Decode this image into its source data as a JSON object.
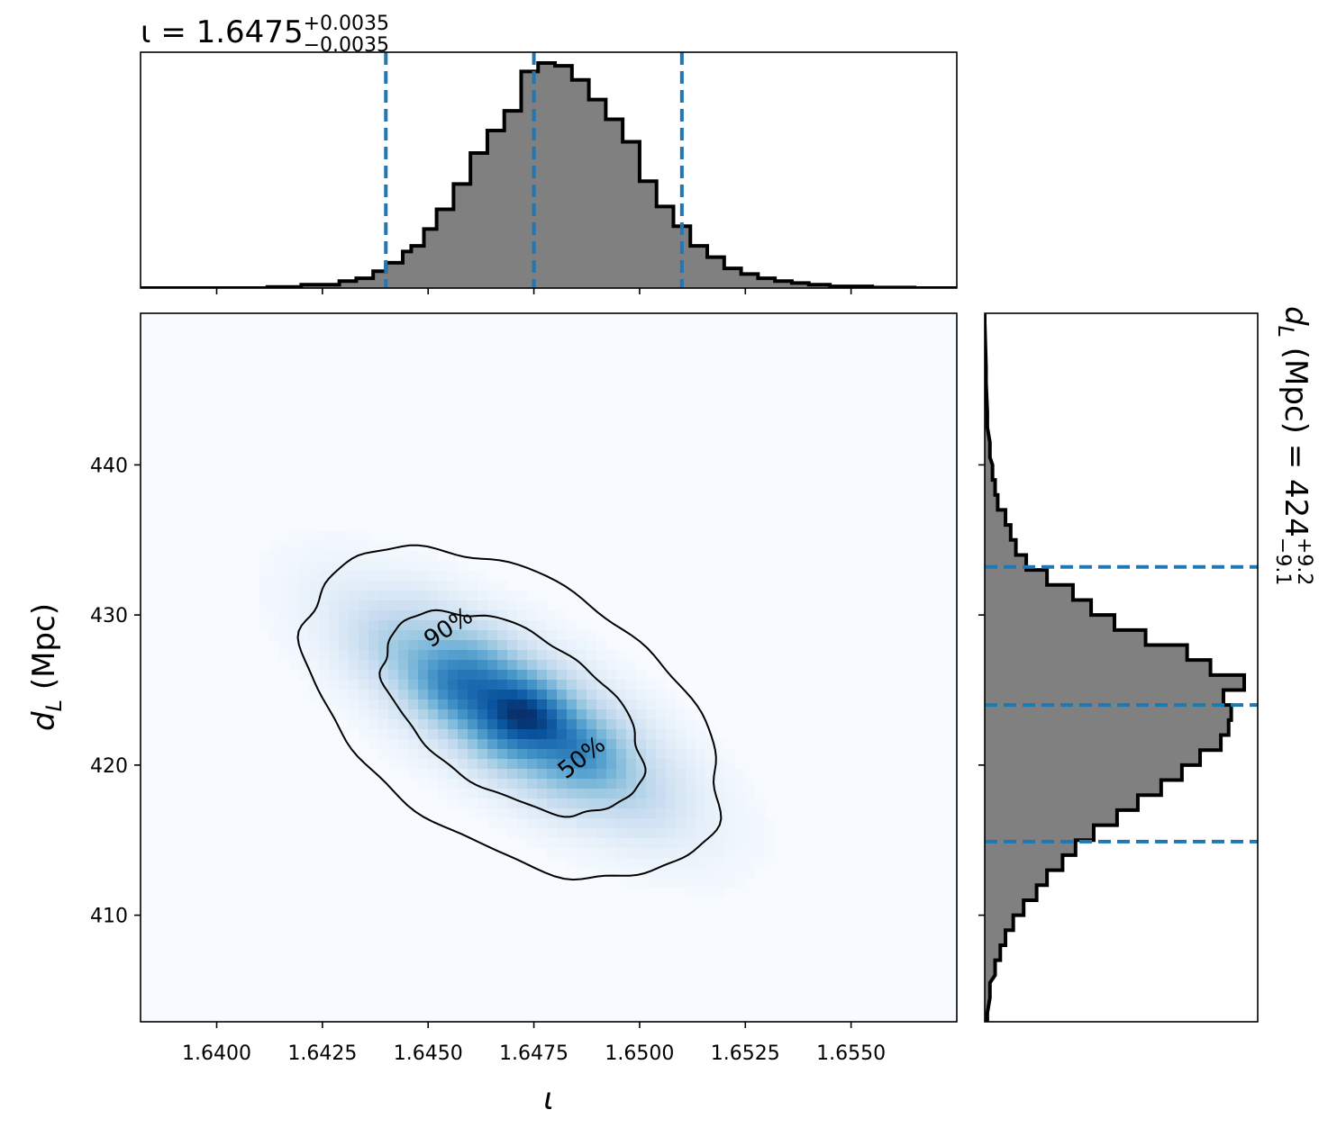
{
  "chart_data": [
    {
      "panel": "top-marginal",
      "type": "histogram",
      "variable": "ι",
      "title": {
        "prefix": "ι = 1.6475",
        "sup": "+0.0035",
        "sub": "−0.0035"
      },
      "xlim": [
        1.6382,
        1.6575
      ],
      "bins_x": [
        1.6382,
        1.64207,
        1.6438,
        1.64415,
        1.64455,
        1.645,
        1.647,
        1.6478,
        1.6485,
        1.6495,
        1.65,
        1.651,
        1.652,
        1.653,
        1.654,
        1.655
      ],
      "hist_profile": [
        {
          "x": 1.6382,
          "y": 0.0
        },
        {
          "x": 1.64,
          "y": 0.0
        },
        {
          "x": 1.6412,
          "y": 0.004
        },
        {
          "x": 1.642,
          "y": 0.012
        },
        {
          "x": 1.6429,
          "y": 0.025
        },
        {
          "x": 1.6433,
          "y": 0.035
        },
        {
          "x": 1.6437,
          "y": 0.06
        },
        {
          "x": 1.644,
          "y": 0.09
        },
        {
          "x": 1.6444,
          "y": 0.13
        },
        {
          "x": 1.6446,
          "y": 0.15
        },
        {
          "x": 1.6449,
          "y": 0.21
        },
        {
          "x": 1.6452,
          "y": 0.28
        },
        {
          "x": 1.6456,
          "y": 0.37
        },
        {
          "x": 1.646,
          "y": 0.48
        },
        {
          "x": 1.6464,
          "y": 0.56
        },
        {
          "x": 1.6468,
          "y": 0.63
        },
        {
          "x": 1.6472,
          "y": 0.77
        },
        {
          "x": 1.6476,
          "y": 0.8
        },
        {
          "x": 1.648,
          "y": 0.79
        },
        {
          "x": 1.6484,
          "y": 0.74
        },
        {
          "x": 1.6488,
          "y": 0.67
        },
        {
          "x": 1.6492,
          "y": 0.6
        },
        {
          "x": 1.6496,
          "y": 0.52
        },
        {
          "x": 1.65,
          "y": 0.38
        },
        {
          "x": 1.6504,
          "y": 0.29
        },
        {
          "x": 1.6508,
          "y": 0.22
        },
        {
          "x": 1.6512,
          "y": 0.15
        },
        {
          "x": 1.6516,
          "y": 0.11
        },
        {
          "x": 1.652,
          "y": 0.07
        },
        {
          "x": 1.6524,
          "y": 0.05
        },
        {
          "x": 1.6528,
          "y": 0.035
        },
        {
          "x": 1.6532,
          "y": 0.025
        },
        {
          "x": 1.6536,
          "y": 0.018
        },
        {
          "x": 1.654,
          "y": 0.012
        },
        {
          "x": 1.6545,
          "y": 0.006
        },
        {
          "x": 1.6555,
          "y": 0.002
        },
        {
          "x": 1.6565,
          "y": 0.0
        },
        {
          "x": 1.6575,
          "y": 0.0
        }
      ],
      "quantile_lines": [
        1.644,
        1.6475,
        1.651
      ],
      "line_color": "#1f77b4",
      "fill_color": "#808080",
      "xticks": [
        1.64,
        1.6425,
        1.645,
        1.6475,
        1.65,
        1.6525,
        1.655
      ]
    },
    {
      "panel": "joint-density",
      "type": "heatmap",
      "xlabel": "ι",
      "ylabel": "d_L (Mpc)",
      "xlim": [
        1.6382,
        1.6575
      ],
      "ylim": [
        402.9,
        450.1
      ],
      "xticks": [
        1.64,
        1.6425,
        1.645,
        1.6475,
        1.65,
        1.6525,
        1.655
      ],
      "xtick_labels": [
        "1.6400",
        "1.6425",
        "1.6450",
        "1.6475",
        "1.6500",
        "1.6525",
        "1.6550"
      ],
      "yticks": [
        410,
        420,
        430,
        440
      ],
      "ytick_labels": [
        "410",
        "420",
        "430",
        "440"
      ],
      "peak": {
        "x": 1.647,
        "y": 423.5
      },
      "colormap": "Blues",
      "contours": [
        {
          "label": "50%",
          "level": 0.5
        },
        {
          "label": "90%",
          "level": 0.9
        }
      ]
    },
    {
      "panel": "right-marginal",
      "type": "histogram",
      "orientation": "horizontal",
      "variable": "d_L (Mpc)",
      "title": {
        "prefix": "d",
        "sub_letter": "L",
        "rest": " (Mpc) = 424",
        "sup": "+9.2",
        "sub": "−9.1"
      },
      "ylim": [
        402.9,
        450.1
      ],
      "quantile_lines": [
        414.9,
        424.0,
        433.2
      ],
      "line_color": "#1f77b4",
      "fill_color": "#808080",
      "hist_profile": [
        {
          "y": 403.0,
          "c": 0.01
        },
        {
          "y": 405.0,
          "c": 0.02
        },
        {
          "y": 406.5,
          "c": 0.04
        },
        {
          "y": 407.5,
          "c": 0.06
        },
        {
          "y": 408.5,
          "c": 0.08
        },
        {
          "y": 409.5,
          "c": 0.11
        },
        {
          "y": 410.5,
          "c": 0.15
        },
        {
          "y": 411.5,
          "c": 0.2
        },
        {
          "y": 412.5,
          "c": 0.24
        },
        {
          "y": 413.5,
          "c": 0.3
        },
        {
          "y": 414.5,
          "c": 0.35
        },
        {
          "y": 415.5,
          "c": 0.42
        },
        {
          "y": 416.5,
          "c": 0.51
        },
        {
          "y": 417.5,
          "c": 0.59
        },
        {
          "y": 418.5,
          "c": 0.68
        },
        {
          "y": 419.5,
          "c": 0.76
        },
        {
          "y": 420.5,
          "c": 0.83
        },
        {
          "y": 421.5,
          "c": 0.91
        },
        {
          "y": 422.5,
          "c": 0.94
        },
        {
          "y": 423.5,
          "c": 0.95
        },
        {
          "y": 424.5,
          "c": 0.92
        },
        {
          "y": 425.5,
          "c": 1.0
        },
        {
          "y": 426.5,
          "c": 0.87
        },
        {
          "y": 427.5,
          "c": 0.78
        },
        {
          "y": 428.5,
          "c": 0.62
        },
        {
          "y": 429.5,
          "c": 0.5
        },
        {
          "y": 430.5,
          "c": 0.41
        },
        {
          "y": 431.5,
          "c": 0.34
        },
        {
          "y": 432.5,
          "c": 0.24
        },
        {
          "y": 433.5,
          "c": 0.16
        },
        {
          "y": 434.5,
          "c": 0.12
        },
        {
          "y": 435.5,
          "c": 0.1
        },
        {
          "y": 436.5,
          "c": 0.08
        },
        {
          "y": 437.5,
          "c": 0.05
        },
        {
          "y": 438.5,
          "c": 0.04
        },
        {
          "y": 439.5,
          "c": 0.03
        },
        {
          "y": 441.0,
          "c": 0.02
        },
        {
          "y": 443.0,
          "c": 0.01
        },
        {
          "y": 446.0,
          "c": 0.005
        },
        {
          "y": 450.0,
          "c": 0.0
        }
      ]
    }
  ]
}
